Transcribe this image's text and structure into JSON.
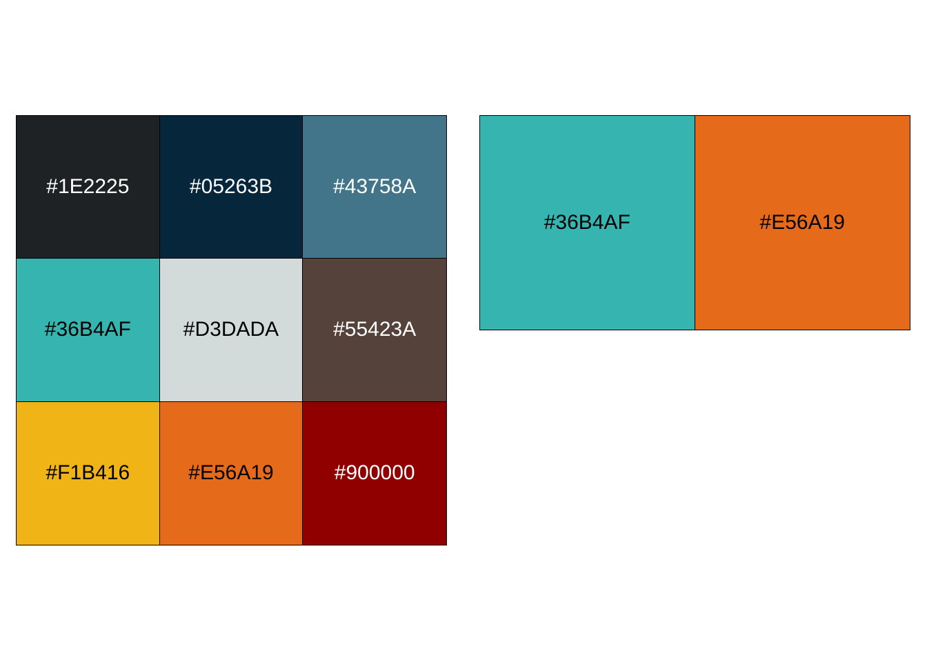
{
  "chart_data": [
    {
      "type": "table",
      "rows": 3,
      "cols": 3,
      "swatches": [
        {
          "label": "#1E2225",
          "color": "#1E2225",
          "text_color": "#FFFFFF"
        },
        {
          "label": "#05263B",
          "color": "#05263B",
          "text_color": "#FFFFFF"
        },
        {
          "label": "#43758A",
          "color": "#43758A",
          "text_color": "#FFFFFF"
        },
        {
          "label": "#36B4AF",
          "color": "#36B4AF",
          "text_color": "#000000"
        },
        {
          "label": "#D3DADA",
          "color": "#D3DADA",
          "text_color": "#000000"
        },
        {
          "label": "#55423A",
          "color": "#55423A",
          "text_color": "#FFFFFF"
        },
        {
          "label": "#F1B416",
          "color": "#F1B416",
          "text_color": "#000000"
        },
        {
          "label": "#E56A19",
          "color": "#E56A19",
          "text_color": "#000000"
        },
        {
          "label": "#900000",
          "color": "#900000",
          "text_color": "#FFFFFF"
        }
      ]
    },
    {
      "type": "table",
      "rows": 1,
      "cols": 2,
      "swatches": [
        {
          "label": "#36B4AF",
          "color": "#36B4AF",
          "text_color": "#000000"
        },
        {
          "label": "#E56A19",
          "color": "#E56A19",
          "text_color": "#000000"
        }
      ]
    }
  ]
}
